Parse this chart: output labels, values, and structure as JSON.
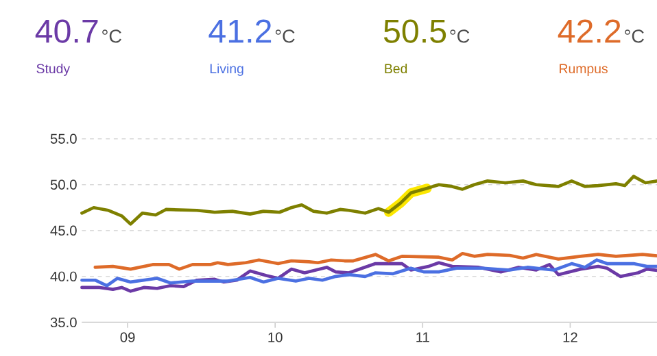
{
  "chart_data": {
    "type": "line",
    "legend": "top",
    "grid": "y",
    "marker": "none",
    "line_style": "solid",
    "annotations": [
      "40.7",
      "°C",
      "41.2",
      "°C",
      "50.5",
      "°C",
      "42.2",
      "°C"
    ],
    "xlim": [
      8.69,
      12.63
    ],
    "ylim": [
      35,
      55
    ],
    "xticks": [
      {
        "value": 9,
        "label": "09"
      },
      10,
      11,
      12
    ],
    "yticks": [
      {
        "value": 35,
        "label": "35.0"
      },
      {
        "value": 40,
        "label": "40.0"
      },
      {
        "value": 45,
        "label": "45.0"
      },
      {
        "value": 50,
        "label": "50.0"
      },
      {
        "value": 55,
        "label": "55.0"
      }
    ],
    "series": [
      {
        "name": "Study",
        "color": "#6b3aa6",
        "x": [
          8.69,
          8.81,
          8.9,
          8.96,
          9.02,
          9.11,
          9.2,
          9.29,
          9.38,
          9.47,
          9.59,
          9.65,
          9.74,
          9.83,
          9.94,
          10.02,
          10.11,
          10.2,
          10.35,
          10.41,
          10.5,
          10.68,
          10.86,
          10.92,
          11.04,
          11.11,
          11.2,
          11.38,
          11.53,
          11.65,
          11.77,
          11.86,
          11.92,
          12.07,
          12.19,
          12.25,
          12.34,
          12.46,
          12.52,
          12.63
        ],
        "values": [
          38.8,
          38.8,
          38.6,
          38.8,
          38.4,
          38.8,
          38.7,
          39.0,
          38.9,
          39.6,
          39.7,
          39.4,
          39.6,
          40.6,
          40.1,
          39.8,
          40.8,
          40.4,
          41.0,
          40.5,
          40.4,
          41.4,
          41.4,
          40.7,
          41.1,
          41.5,
          41.1,
          41.0,
          40.5,
          41.0,
          40.7,
          41.3,
          40.2,
          40.8,
          41.1,
          40.9,
          40.0,
          40.4,
          40.8,
          40.6
        ]
      },
      {
        "name": "Living",
        "color": "#4b70e2",
        "x": [
          8.69,
          8.78,
          8.86,
          8.93,
          9.02,
          9.2,
          9.29,
          9.44,
          9.56,
          9.68,
          9.83,
          9.92,
          10.02,
          10.14,
          10.23,
          10.32,
          10.41,
          10.5,
          10.61,
          10.68,
          10.8,
          10.92,
          11.01,
          11.11,
          11.23,
          11.41,
          11.59,
          11.71,
          11.89,
          12.01,
          12.1,
          12.18,
          12.25,
          12.43,
          12.52,
          12.63
        ],
        "values": [
          39.6,
          39.6,
          39.0,
          39.8,
          39.4,
          39.8,
          39.3,
          39.5,
          39.5,
          39.5,
          39.9,
          39.4,
          39.8,
          39.5,
          39.8,
          39.6,
          40.0,
          40.2,
          40.0,
          40.4,
          40.3,
          40.9,
          40.5,
          40.5,
          40.9,
          40.9,
          40.7,
          41.0,
          40.7,
          41.4,
          41.0,
          41.8,
          41.4,
          41.4,
          41.1,
          41.1
        ]
      },
      {
        "color": "#fce700",
        "x": [
          10.77,
          10.85,
          10.92,
          11.03
        ],
        "values": [
          47.0,
          48.0,
          49.1,
          49.6
        ]
      },
      {
        "name": "Bed",
        "color": "#7e8000",
        "x": [
          8.69,
          8.77,
          8.87,
          8.96,
          9.02,
          9.1,
          9.19,
          9.26,
          9.47,
          9.59,
          9.71,
          9.83,
          9.92,
          10.03,
          10.11,
          10.18,
          10.26,
          10.35,
          10.44,
          10.5,
          10.61,
          10.7,
          10.77,
          10.85,
          10.92,
          11.03,
          11.11,
          11.2,
          11.27,
          11.35,
          11.44,
          11.56,
          11.68,
          11.77,
          11.92,
          12.01,
          12.1,
          12.19,
          12.31,
          12.37,
          12.43,
          12.51,
          12.63
        ],
        "values": [
          46.9,
          47.5,
          47.2,
          46.6,
          45.7,
          46.9,
          46.7,
          47.3,
          47.2,
          47.0,
          47.1,
          46.8,
          47.1,
          47.0,
          47.5,
          47.8,
          47.1,
          46.9,
          47.3,
          47.2,
          46.9,
          47.4,
          47.0,
          48.0,
          49.1,
          49.6,
          50.0,
          49.8,
          49.5,
          50.0,
          50.4,
          50.2,
          50.4,
          50.0,
          49.8,
          50.4,
          49.8,
          49.9,
          50.1,
          49.9,
          50.9,
          50.2,
          50.5
        ]
      },
      {
        "name": "Rumpus",
        "color": "#de6b29",
        "x": [
          8.78,
          8.9,
          9.02,
          9.17,
          9.28,
          9.35,
          9.44,
          9.56,
          9.61,
          9.68,
          9.8,
          9.89,
          10.02,
          10.11,
          10.23,
          10.29,
          10.38,
          10.47,
          10.53,
          10.68,
          10.77,
          10.86,
          11.11,
          11.2,
          11.27,
          11.35,
          11.44,
          11.59,
          11.68,
          11.77,
          11.92,
          12.07,
          12.19,
          12.31,
          12.49,
          12.63
        ],
        "values": [
          41.0,
          41.1,
          40.8,
          41.3,
          41.3,
          40.8,
          41.3,
          41.3,
          41.5,
          41.3,
          41.5,
          41.8,
          41.4,
          41.7,
          41.6,
          41.5,
          41.8,
          41.7,
          41.7,
          42.4,
          41.7,
          42.2,
          42.1,
          41.8,
          42.5,
          42.2,
          42.4,
          42.3,
          42.0,
          42.4,
          41.9,
          42.2,
          42.4,
          42.2,
          42.4,
          42.2
        ]
      }
    ]
  }
}
